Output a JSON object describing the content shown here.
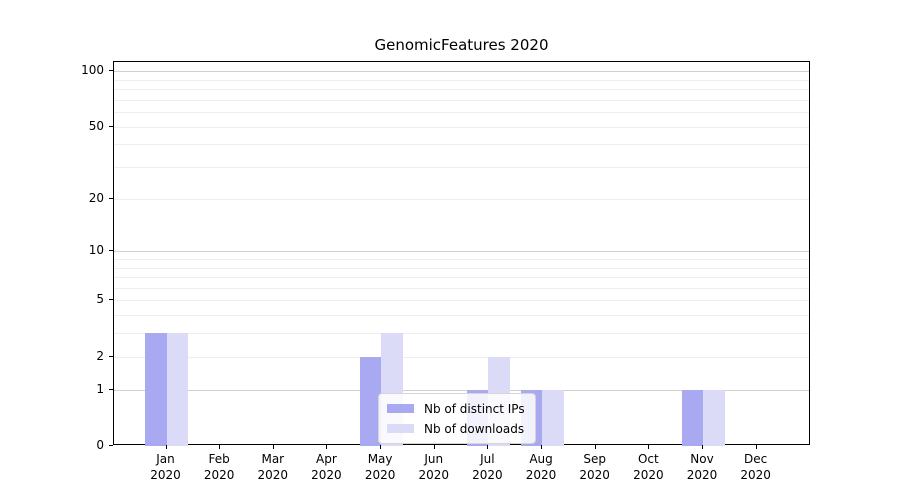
{
  "chart_data": {
    "type": "bar",
    "title": "GenomicFeatures 2020",
    "categories": [
      "Jan",
      "Feb",
      "Mar",
      "Apr",
      "May",
      "Jun",
      "Jul",
      "Aug",
      "Sep",
      "Oct",
      "Nov",
      "Dec"
    ],
    "year_label": "2020",
    "series": [
      {
        "name": "Nb of distinct IPs",
        "color": "#a9a9f1",
        "values": [
          3,
          0,
          0,
          0,
          2,
          0,
          1,
          1,
          0,
          0,
          1,
          0
        ]
      },
      {
        "name": "Nb of downloads",
        "color": "#dbdbf7",
        "values": [
          3,
          0,
          0,
          0,
          3,
          0,
          2,
          1,
          0,
          0,
          1,
          0
        ]
      }
    ],
    "yscale": "log1p",
    "ylim": [
      0,
      112
    ],
    "yticks": [
      0,
      1,
      2,
      5,
      10,
      20,
      50,
      100
    ],
    "gridlines": {
      "major": [
        1,
        10,
        100
      ],
      "minor": [
        2,
        3,
        4,
        5,
        6,
        7,
        8,
        9,
        20,
        30,
        40,
        50,
        60,
        70,
        80,
        90
      ]
    },
    "grid_on": true,
    "legend_position": "inside-bottom-center"
  }
}
